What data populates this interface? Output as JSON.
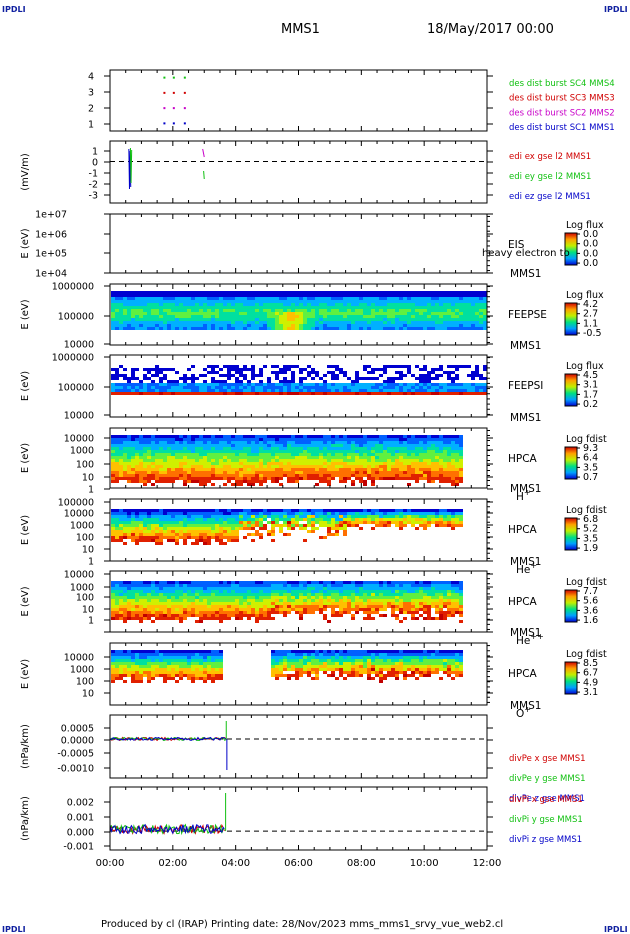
{
  "corner_label": "IPDLI",
  "header": {
    "spacecraft": "MMS1",
    "datetime": "18/May/2017 00:00"
  },
  "footer": {
    "text": "Produced by cl (IRAP)   Printing date: 28/Nov/2023   mms_mms1_srvy_vue_web2.cl"
  },
  "colors": {
    "mms1": "#0000c8",
    "mms2": "#c800c8",
    "mms3": "#d00000",
    "mms4": "#10c010",
    "x": "#d00000",
    "y": "#10c010",
    "z": "#0000c8"
  },
  "chart_data": [
    {
      "id": "availability",
      "type": "scatter",
      "yticks": [
        "4",
        "3",
        "2",
        "1"
      ],
      "ylim": [
        0.5,
        4.5
      ],
      "series": [
        {
          "name": "des dist burst SC1 MMS1",
          "color": "#0000c8",
          "y": 1,
          "x_hours": [
            1.7,
            2.0,
            2.35
          ]
        },
        {
          "name": "des dist burst SC2 MMS2",
          "color": "#c800c8",
          "y": 2,
          "x_hours": [
            1.7,
            2.0,
            2.35
          ]
        },
        {
          "name": "des dist burst SC3 MMS3",
          "color": "#d00000",
          "y": 3,
          "x_hours": [
            1.7,
            2.0,
            2.35
          ]
        },
        {
          "name": "des dist burst SC4 MMS4",
          "color": "#10c010",
          "y": 4,
          "x_hours": [
            1.7,
            2.0,
            2.35
          ]
        }
      ]
    },
    {
      "id": "edi-e",
      "type": "line",
      "ylabel": "(mV/m)",
      "yticks": [
        "1",
        "0",
        "-1",
        "-2",
        "-3"
      ],
      "ylim": [
        -3.5,
        1.5
      ],
      "series": [
        {
          "name": "edi ex gse l2 MMS1",
          "color": "#d00000"
        },
        {
          "name": "edi ey gse l2 MMS1",
          "color": "#10c010"
        },
        {
          "name": "edi ez gse l2 MMS1",
          "color": "#0000c8"
        }
      ]
    },
    {
      "id": "eis",
      "type": "heatmap",
      "ylabel": "E (eV)",
      "yticks": [
        "1e+07",
        "1e+06",
        "1e+05",
        "1e+04"
      ],
      "labels": [
        "EIS",
        "MMS1"
      ],
      "overlay_text": "heavy electron to",
      "colorbar": {
        "title": "Log flux",
        "ticks": [
          "0.0",
          "0.0",
          "0.0",
          "0.0"
        ]
      }
    },
    {
      "id": "feepse",
      "type": "heatmap",
      "ylabel": "E (eV)",
      "yticks": [
        "1000000",
        "100000",
        "10000"
      ],
      "labels": [
        "FEEPSE",
        "MMS1"
      ],
      "colorbar": {
        "title": "Log flux",
        "ticks": [
          "4.2",
          "2.7",
          "1.1",
          "-0.5"
        ]
      }
    },
    {
      "id": "feepsi",
      "type": "heatmap",
      "ylabel": "E (eV)",
      "yticks": [
        "1000000",
        "100000",
        "10000"
      ],
      "labels": [
        "FEEPSI",
        "MMS1"
      ],
      "colorbar": {
        "title": "Log flux",
        "ticks": [
          "4.5",
          "3.1",
          "1.7",
          "0.2"
        ]
      }
    },
    {
      "id": "hpca-h",
      "type": "heatmap",
      "ylabel": "E (eV)",
      "yticks": [
        "10000",
        "1000",
        "100",
        "10",
        "1"
      ],
      "labels": [
        "HPCA",
        "MMS1"
      ],
      "species": "H",
      "species_sup": "+",
      "colorbar": {
        "title": "Log fdist",
        "ticks": [
          "9.3",
          "6.4",
          "3.5",
          "0.7"
        ]
      }
    },
    {
      "id": "hpca-he",
      "type": "heatmap",
      "ylabel": "E (eV)",
      "yticks": [
        "100000",
        "10000",
        "1000",
        "100",
        "10",
        "1"
      ],
      "labels": [
        "HPCA",
        "MMS1"
      ],
      "species": "He",
      "species_sup": "+",
      "colorbar": {
        "title": "Log fdist",
        "ticks": [
          "6.8",
          "5.2",
          "3.5",
          "1.9"
        ]
      }
    },
    {
      "id": "hpca-he2",
      "type": "heatmap",
      "ylabel": "E (eV)",
      "yticks": [
        "10000",
        "1000",
        "100",
        "10",
        "1"
      ],
      "labels": [
        "HPCA",
        "MMS1"
      ],
      "species": "He",
      "species_sup": "++",
      "colorbar": {
        "title": "Log fdist",
        "ticks": [
          "7.7",
          "5.6",
          "3.6",
          "1.6"
        ]
      }
    },
    {
      "id": "hpca-o",
      "type": "heatmap",
      "ylabel": "E (eV)",
      "yticks": [
        "10000",
        "1000",
        "100",
        "10"
      ],
      "labels": [
        "HPCA",
        "MMS1"
      ],
      "species": "O",
      "species_sup": "+",
      "colorbar": {
        "title": "Log fdist",
        "ticks": [
          "8.5",
          "6.7",
          "4.9",
          "3.1"
        ]
      }
    },
    {
      "id": "divpe",
      "type": "line",
      "ylabel": "(nPa/km)",
      "yticks": [
        "0.0005",
        "0.0000",
        "-0.0005",
        "-0.0010"
      ],
      "ylim": [
        -0.0013,
        0.0008
      ],
      "series": [
        {
          "name": "divPe x gse MMS1",
          "color": "#d00000"
        },
        {
          "name": "divPe y gse MMS1",
          "color": "#10c010"
        },
        {
          "name": "divPe z gse MMS1",
          "color": "#0000c8"
        }
      ]
    },
    {
      "id": "divpi",
      "type": "line",
      "ylabel": "(nPa/km)",
      "yticks": [
        "0.002",
        "0.001",
        "0.000",
        "-0.001"
      ],
      "ylim": [
        -0.0012,
        0.0028
      ],
      "series": [
        {
          "name": "divPi x gse MMS1",
          "color": "#d00000"
        },
        {
          "name": "divPi y gse MMS1",
          "color": "#10c010"
        },
        {
          "name": "divPi z gse MMS1",
          "color": "#0000c8"
        }
      ]
    }
  ],
  "xaxis": {
    "ticks": [
      "00:00",
      "02:00",
      "04:00",
      "06:00",
      "08:00",
      "10:00",
      "12:00"
    ],
    "xlim_hours": [
      0,
      12
    ]
  }
}
